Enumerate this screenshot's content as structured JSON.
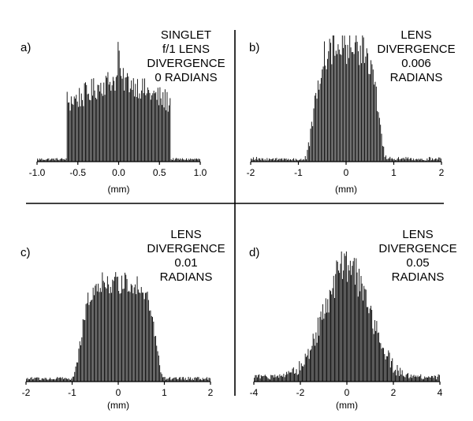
{
  "colors": {
    "background": "#ffffff",
    "ink": "#000000"
  },
  "chart_data": [
    {
      "type": "bar",
      "panel": "a)",
      "caption": [
        "SINGLET",
        "f/1 LENS",
        "DIVERGENCE",
        "0 RADIANS"
      ],
      "xlabel": "(mm)",
      "xlim": [
        -1.0,
        1.0
      ],
      "xticks": [
        -1.0,
        -0.5,
        0.0,
        0.5,
        1.0
      ],
      "xtick_labels": [
        "-1.0",
        "-0.5",
        "0.0",
        "0.5",
        "1.0"
      ],
      "ylim": [
        0,
        1
      ],
      "grid": false,
      "bins": 160,
      "shape": "flat-top",
      "params": {
        "half_width": 0.64,
        "base": 0.47,
        "bump": 0.2,
        "bump_width": 0.3,
        "spike": 0.28,
        "noise": 0.1,
        "floor": 0.02
      }
    },
    {
      "type": "bar",
      "panel": "b)",
      "caption": [
        "LENS",
        "DIVERGENCE",
        "0.006",
        "RADIANS"
      ],
      "xlabel": "(mm)",
      "xlim": [
        -2,
        2
      ],
      "xticks": [
        -2,
        -1,
        0,
        1,
        2
      ],
      "xtick_labels": [
        "-2",
        "-1",
        "0",
        "1",
        "2"
      ],
      "ylim": [
        0,
        1
      ],
      "grid": false,
      "bins": 180,
      "shape": "super-gaussian",
      "params": {
        "center": 0.0,
        "sigma": 0.62,
        "order": 3,
        "noise": 0.11,
        "floor": 0.02,
        "peak": 0.9
      }
    },
    {
      "type": "bar",
      "panel": "c)",
      "caption": [
        "LENS",
        "DIVERGENCE",
        "0.01",
        "RADIANS"
      ],
      "xlabel": "(mm)",
      "xlim": [
        -2,
        2
      ],
      "xticks": [
        -2,
        -1,
        0,
        1,
        2
      ],
      "xtick_labels": [
        "-2",
        "-1",
        "0",
        "1",
        "2"
      ],
      "ylim": [
        0,
        1
      ],
      "grid": false,
      "bins": 180,
      "shape": "super-gaussian",
      "params": {
        "center": 0.0,
        "sigma": 0.75,
        "order": 3.5,
        "noise": 0.08,
        "floor": 0.03,
        "peak": 0.88
      }
    },
    {
      "type": "bar",
      "panel": "d)",
      "caption": [
        "LENS",
        "DIVERGENCE",
        "0.05",
        "RADIANS"
      ],
      "xlabel": "(mm)",
      "xlim": [
        -4,
        4
      ],
      "xticks": [
        -4,
        -2,
        0,
        2,
        4
      ],
      "xtick_labels": [
        "-4",
        "-2",
        "0",
        "2",
        "4"
      ],
      "ylim": [
        0,
        1
      ],
      "grid": false,
      "bins": 190,
      "shape": "gaussian",
      "params": {
        "center": 0.0,
        "sigma": 1.0,
        "order": 1,
        "noise": 0.12,
        "floor": 0.04,
        "peak": 0.88
      }
    }
  ]
}
